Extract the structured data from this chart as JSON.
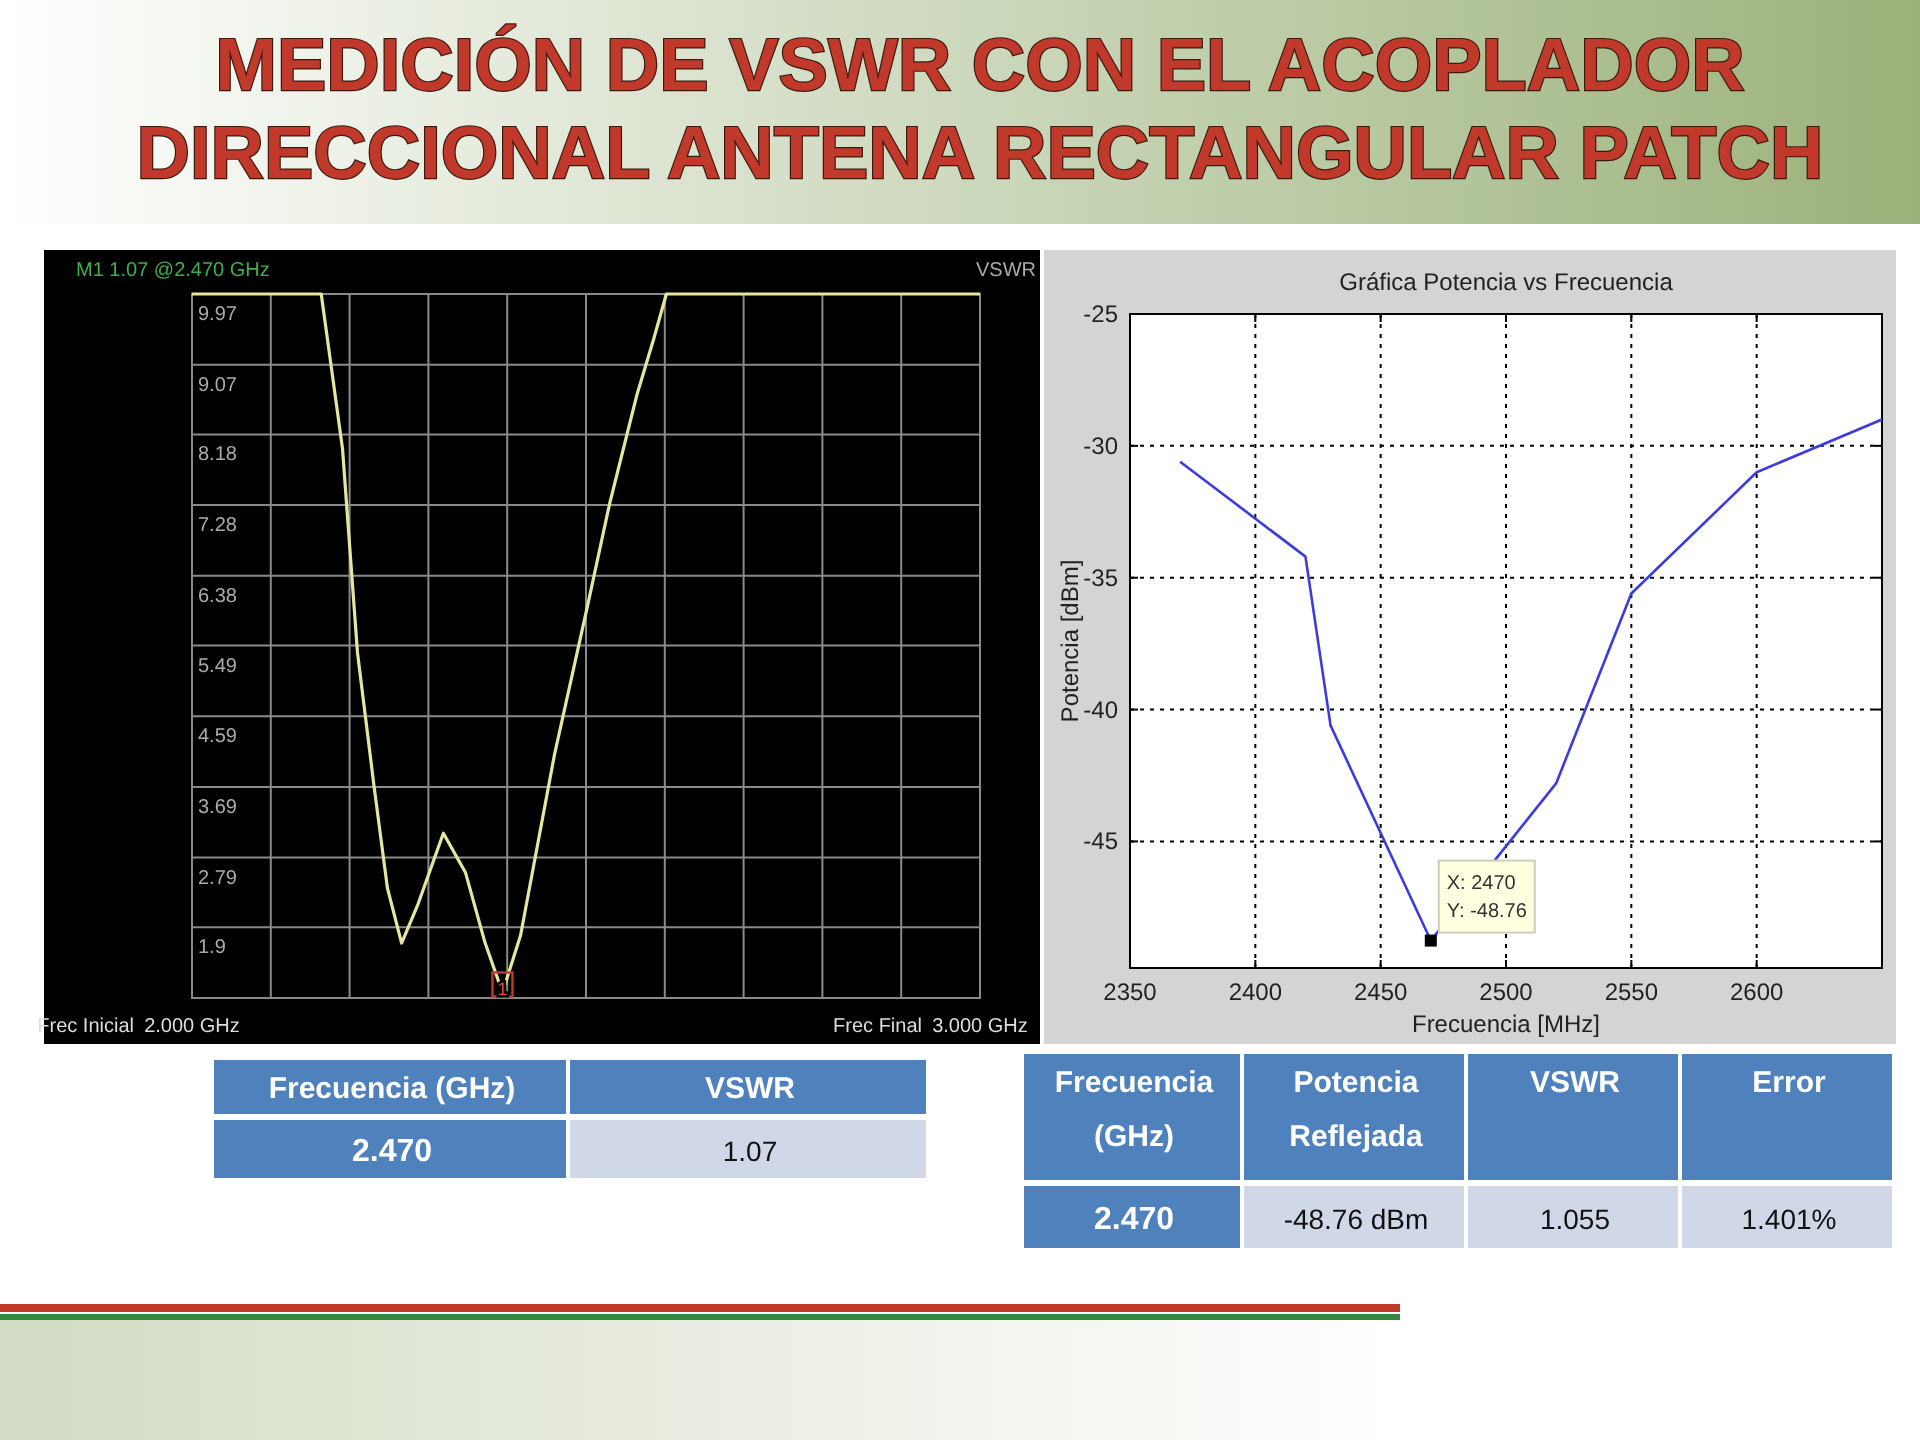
{
  "chart_data": [
    {
      "type": "other",
      "title": "MEDICIÓN DE VSWR CON EL ACOPLADOR DIRECCIONAL ANTENA RECTANGULAR PATCH"
    },
    {
      "type": "line",
      "title": "M1 1.07 @2.470 GHz",
      "ylabel": "VSWR",
      "xlim": [
        2.0,
        3.0
      ],
      "ylim": [
        1.0,
        9.97
      ],
      "xticks": [
        {
          "value": 2.0,
          "label": "2.000 GHz"
        },
        {
          "value": 2.1,
          "label": null
        },
        {
          "value": 2.2,
          "label": null
        },
        {
          "value": 2.3,
          "label": null
        },
        {
          "value": 2.4,
          "label": null
        },
        {
          "value": 2.5,
          "label": null
        },
        {
          "value": 2.6,
          "label": null
        },
        {
          "value": 2.7,
          "label": null
        },
        {
          "value": 2.8,
          "label": null
        },
        {
          "value": 2.9,
          "label": null
        },
        {
          "value": 3.0,
          "label": "3.000 GHz"
        }
      ],
      "yticks": [
        1.9,
        2.79,
        3.69,
        4.59,
        5.49,
        6.38,
        7.28,
        8.18,
        9.07,
        9.97
      ],
      "grid": true,
      "marker": "none",
      "line_style": "solid",
      "series": [
        {
          "color": "#e6e6a0",
          "x": [
            2.0,
            2.164,
            2.191,
            2.21,
            2.231,
            2.248,
            2.266,
            2.287,
            2.319,
            2.347,
            2.372,
            2.394,
            2.417,
            2.46,
            2.502,
            2.53,
            2.565,
            2.586,
            2.602,
            3.0
          ],
          "values": [
            9.97,
            9.97,
            8.0,
            5.4,
            3.7,
            2.4,
            1.7,
            2.2,
            3.1,
            2.6,
            1.7,
            1.07,
            1.8,
            4.1,
            6.0,
            7.3,
            8.7,
            9.4,
            9.97,
            9.97
          ]
        }
      ],
      "annotations": [
        {
          "text": "1",
          "x": 2.394,
          "y": 1.07
        },
        "Frec Inicial",
        "Frec Final"
      ]
    },
    {
      "type": "line",
      "title": "Gráfica Potencia vs Frecuencia",
      "xlabel": "Frecuencia [MHz]",
      "ylabel": "Potencia [dBm]",
      "xlim": [
        2350,
        2650
      ],
      "ylim": [
        -49.8,
        -25
      ],
      "xticks": [
        2350,
        2400,
        2450,
        2500,
        2550,
        2600
      ],
      "yticks": [
        -45,
        -40,
        -35,
        -30,
        -25
      ],
      "grid": true,
      "marker": "none",
      "line_style": "solid",
      "series": [
        {
          "color": "#3c3cdc",
          "x": [
            2370,
            2420,
            2430,
            2470,
            2520,
            2550,
            2600,
            2650
          ],
          "values": [
            -30.6,
            -34.2,
            -40.6,
            -48.76,
            -42.8,
            -35.6,
            -31.0,
            -29.0
          ]
        }
      ],
      "annotations": [
        {
          "text": "X: 2470\nY: -48.76",
          "x": 2470,
          "y": -48.76
        }
      ]
    },
    {
      "type": "other",
      "categories": [
        "Frecuencia (GHz)",
        "VSWR"
      ],
      "annotations": [
        "2.470",
        "1.07"
      ]
    },
    {
      "type": "other",
      "categories": [
        "Frecuencia (GHz)",
        "Potencia Reflejada",
        "VSWR",
        "Error"
      ],
      "annotations": [
        "2.470",
        "-48.76 dBm",
        "1.055",
        "1.401%"
      ]
    }
  ]
}
